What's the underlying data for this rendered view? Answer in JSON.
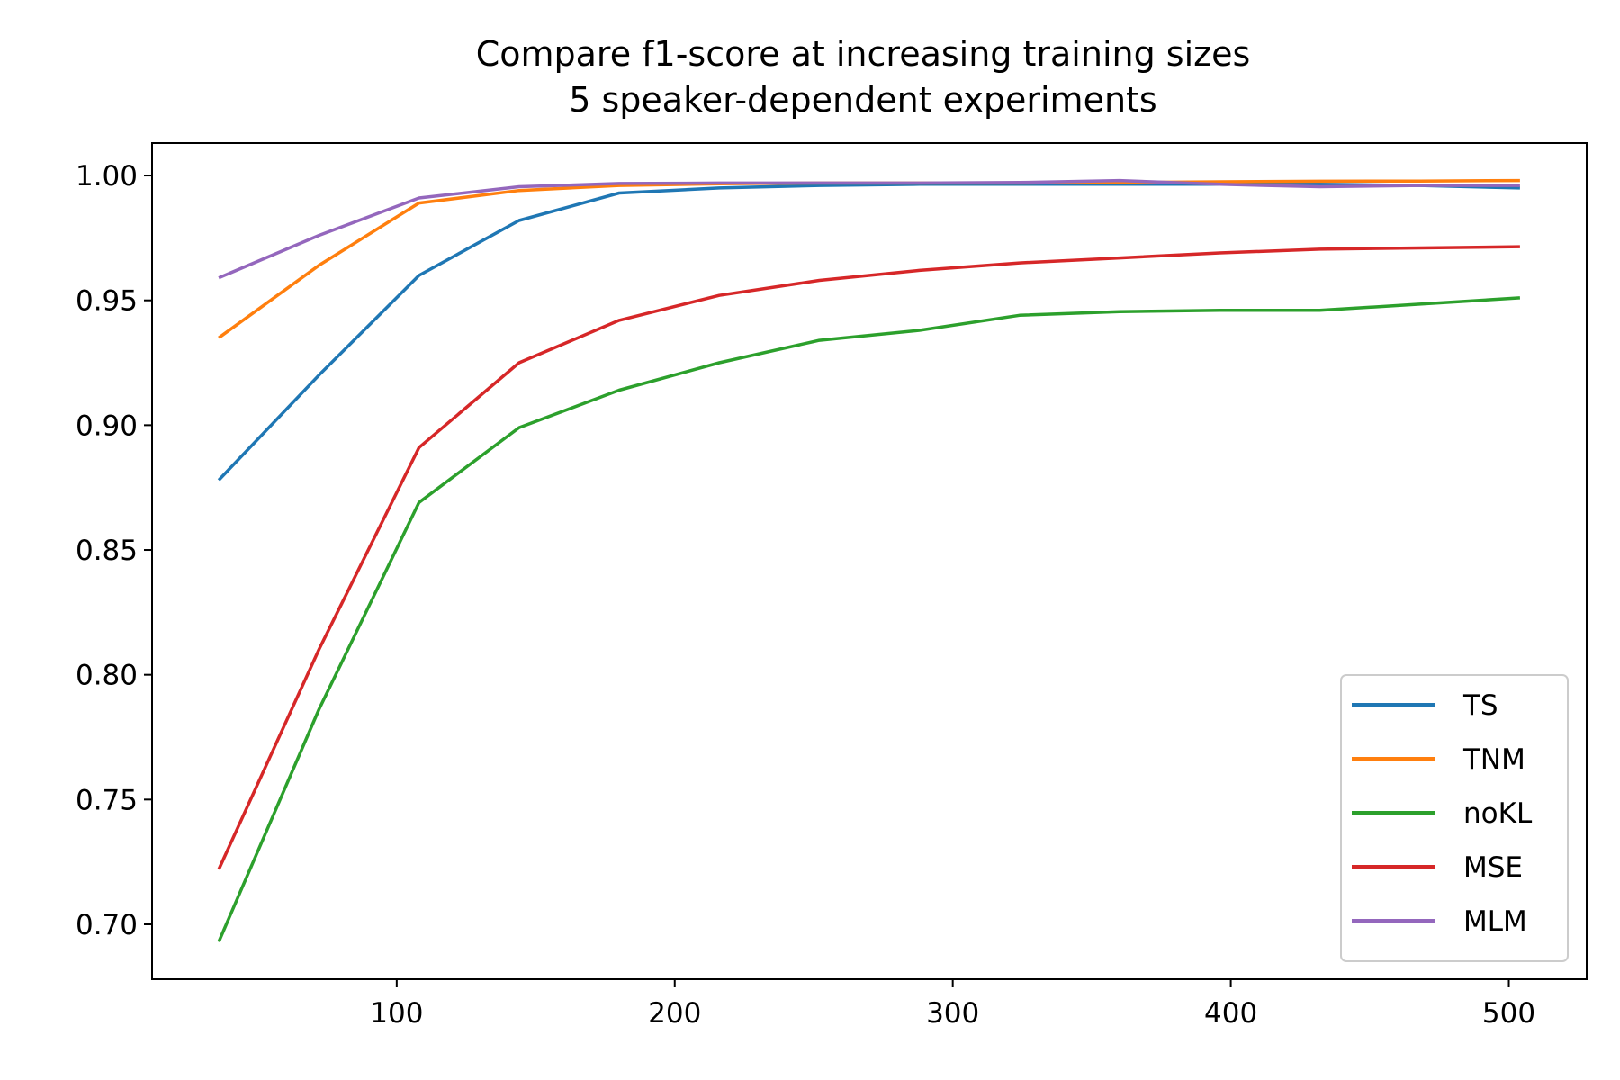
{
  "chart_data": {
    "type": "line",
    "title": "Compare f1-score at increasing training sizes",
    "subtitle": "5 speaker-dependent experiments",
    "xlabel": "",
    "ylabel": "",
    "xlim": [
      12,
      528
    ],
    "ylim": [
      0.678,
      1.013
    ],
    "xticks": [
      100,
      200,
      300,
      400,
      500
    ],
    "xtick_labels": [
      "100",
      "200",
      "300",
      "400",
      "500"
    ],
    "yticks": [
      0.7,
      0.75,
      0.8,
      0.85,
      0.9,
      0.95,
      1.0
    ],
    "ytick_labels": [
      "0.70",
      "0.75",
      "0.80",
      "0.85",
      "0.90",
      "0.95",
      "1.00"
    ],
    "grid": false,
    "legend_position": "bottom-right",
    "series": [
      {
        "name": "TS",
        "color": "#1f77b4",
        "x": [
          36,
          72,
          108,
          144,
          180,
          216,
          252,
          288,
          324,
          360,
          396,
          432,
          468,
          504
        ],
        "y": [
          0.878,
          0.92,
          0.96,
          0.982,
          0.993,
          0.995,
          0.996,
          0.9965,
          0.9965,
          0.9965,
          0.9965,
          0.9965,
          0.996,
          0.995
        ]
      },
      {
        "name": "TNM",
        "color": "#ff7f0e",
        "x": [
          36,
          72,
          108,
          144,
          180,
          216,
          252,
          288,
          324,
          360,
          396,
          432,
          468,
          504
        ],
        "y": [
          0.935,
          0.964,
          0.989,
          0.994,
          0.996,
          0.9967,
          0.997,
          0.997,
          0.997,
          0.9972,
          0.9975,
          0.9977,
          0.9978,
          0.998
        ]
      },
      {
        "name": "noKL",
        "color": "#2ca02c",
        "x": [
          36,
          72,
          108,
          144,
          180,
          216,
          252,
          288,
          324,
          360,
          396,
          432,
          468,
          504
        ],
        "y": [
          0.693,
          0.786,
          0.869,
          0.899,
          0.914,
          0.925,
          0.934,
          0.938,
          0.944,
          0.9455,
          0.946,
          0.946,
          0.9485,
          0.951
        ]
      },
      {
        "name": "MSE",
        "color": "#d62728",
        "x": [
          36,
          72,
          108,
          144,
          180,
          216,
          252,
          288,
          324,
          360,
          396,
          432,
          468,
          504
        ],
        "y": [
          0.722,
          0.81,
          0.891,
          0.925,
          0.942,
          0.952,
          0.958,
          0.962,
          0.965,
          0.967,
          0.969,
          0.9705,
          0.971,
          0.9715
        ]
      },
      {
        "name": "MLM",
        "color": "#9467bd",
        "x": [
          36,
          72,
          108,
          144,
          180,
          216,
          252,
          288,
          324,
          360,
          396,
          432,
          468,
          504
        ],
        "y": [
          0.959,
          0.976,
          0.991,
          0.9955,
          0.9968,
          0.997,
          0.997,
          0.997,
          0.9972,
          0.998,
          0.9965,
          0.9955,
          0.996,
          0.996
        ]
      }
    ]
  }
}
